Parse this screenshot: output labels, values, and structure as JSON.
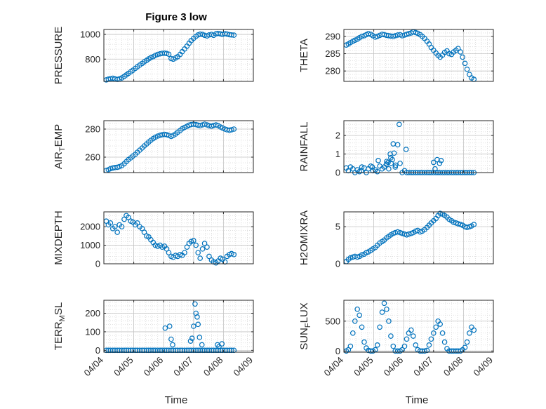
{
  "figure": {
    "title": "Figure 3 low",
    "xlabel": "Time"
  },
  "colors": {
    "marker": "#0072BD",
    "axis": "#262626",
    "grid": "#d9d9d9"
  },
  "chart_data": [
    {
      "type": "scatter",
      "ylabel": "PRESSURE",
      "ylim": [
        620,
        1040
      ],
      "yticks": [
        800,
        1000
      ],
      "x": [
        4.08,
        4.15,
        4.22,
        4.3,
        4.37,
        4.45,
        4.52,
        4.6,
        4.68,
        4.75,
        4.82,
        4.9,
        4.97,
        5.05,
        5.12,
        5.2,
        5.28,
        5.35,
        5.43,
        5.5,
        5.57,
        5.65,
        5.72,
        5.8,
        5.88,
        5.95,
        6.03,
        6.1,
        6.17,
        6.25,
        6.32,
        6.4,
        6.47,
        6.55,
        6.62,
        6.7,
        6.78,
        6.85,
        6.92,
        7.0,
        7.08,
        7.15,
        7.22,
        7.3,
        7.37,
        7.45,
        7.52,
        7.6,
        7.67,
        7.75,
        7.82,
        7.9,
        7.97,
        8.05,
        8.12,
        8.2,
        8.27,
        8.35
      ],
      "y": [
        632,
        638,
        642,
        645,
        640,
        636,
        640,
        648,
        660,
        672,
        685,
        698,
        710,
        725,
        738,
        752,
        765,
        778,
        790,
        802,
        812,
        820,
        830,
        838,
        843,
        847,
        848,
        846,
        840,
        805,
        800,
        810,
        820,
        838,
        860,
        882,
        905,
        928,
        950,
        968,
        984,
        996,
        1002,
        1000,
        993,
        988,
        996,
        1000,
        993,
        1005,
        1008,
        1004,
        1000,
        1006,
        1003,
        998,
        996,
        994
      ],
      "xlim": [
        4.0,
        9.0
      ],
      "xticks": [
        4,
        5,
        6,
        7,
        8,
        9
      ],
      "xticklabels": [
        "04/04",
        "04/05",
        "04/06",
        "04/07",
        "04/08",
        "04/09"
      ],
      "grid": true
    },
    {
      "type": "scatter",
      "ylabel": "THETA",
      "ylim": [
        277,
        292
      ],
      "yticks": [
        280,
        285,
        290
      ],
      "x": [
        4.08,
        4.15,
        4.22,
        4.3,
        4.37,
        4.45,
        4.52,
        4.6,
        4.68,
        4.75,
        4.82,
        4.9,
        4.97,
        5.05,
        5.12,
        5.2,
        5.28,
        5.35,
        5.43,
        5.5,
        5.57,
        5.65,
        5.72,
        5.8,
        5.88,
        5.95,
        6.03,
        6.1,
        6.17,
        6.25,
        6.32,
        6.4,
        6.47,
        6.55,
        6.62,
        6.7,
        6.78,
        6.85,
        6.92,
        7.0,
        7.08,
        7.15,
        7.22,
        7.3,
        7.37,
        7.45,
        7.52,
        7.6,
        7.67,
        7.75,
        7.82,
        7.9,
        7.97,
        8.05,
        8.12,
        8.2,
        8.27,
        8.35
      ],
      "y": [
        287.5,
        287.8,
        288.2,
        288.6,
        288.9,
        289.2,
        289.6,
        290.0,
        290.2,
        290.5,
        290.8,
        290.6,
        290.2,
        289.8,
        290.0,
        290.3,
        290.6,
        290.5,
        290.3,
        290.2,
        290.1,
        290.0,
        290.2,
        290.4,
        290.5,
        290.2,
        290.4,
        290.6,
        290.8,
        291.0,
        291.3,
        291.1,
        290.9,
        290.5,
        290.0,
        289.4,
        288.6,
        287.8,
        286.8,
        286.0,
        285.2,
        284.5,
        284.0,
        284.6,
        285.4,
        285.8,
        285.0,
        284.8,
        285.5,
        286.0,
        286.5,
        285.5,
        284.0,
        282.2,
        280.5,
        279.0,
        278.0,
        277.6
      ],
      "xlim": [
        4.0,
        9.0
      ],
      "xticks": [
        4,
        5,
        6,
        7,
        8,
        9
      ],
      "xticklabels": [
        "04/04",
        "04/05",
        "04/06",
        "04/07",
        "04/08",
        "04/09"
      ],
      "grid": true
    },
    {
      "type": "scatter",
      "ylabel": "AIR_TEMP",
      "ylim": [
        249,
        286
      ],
      "yticks": [
        260,
        280
      ],
      "x": [
        4.08,
        4.15,
        4.22,
        4.3,
        4.37,
        4.45,
        4.52,
        4.6,
        4.68,
        4.75,
        4.82,
        4.9,
        4.97,
        5.05,
        5.12,
        5.2,
        5.28,
        5.35,
        5.43,
        5.5,
        5.57,
        5.65,
        5.72,
        5.8,
        5.88,
        5.95,
        6.03,
        6.1,
        6.17,
        6.25,
        6.32,
        6.4,
        6.47,
        6.55,
        6.62,
        6.7,
        6.78,
        6.85,
        6.92,
        7.0,
        7.08,
        7.15,
        7.22,
        7.3,
        7.37,
        7.45,
        7.52,
        7.6,
        7.67,
        7.75,
        7.82,
        7.9,
        7.97,
        8.05,
        8.12,
        8.2,
        8.27,
        8.35
      ],
      "y": [
        250.5,
        251.0,
        251.8,
        252.3,
        252.6,
        252.8,
        253.2,
        254.0,
        255.3,
        256.8,
        258.2,
        259.5,
        260.8,
        262.0,
        263.5,
        265.0,
        266.5,
        268.0,
        269.4,
        270.8,
        272.0,
        273.2,
        274.2,
        275.0,
        275.6,
        276.0,
        276.2,
        276.0,
        275.5,
        274.8,
        275.5,
        276.5,
        277.8,
        279.0,
        280.2,
        281.2,
        282.0,
        282.8,
        283.2,
        283.5,
        283.2,
        282.8,
        282.5,
        283.0,
        283.5,
        283.0,
        282.4,
        282.0,
        282.6,
        283.0,
        282.5,
        281.5,
        280.8,
        280.0,
        279.5,
        279.2,
        279.5,
        280.0
      ],
      "xlim": [
        4.0,
        9.0
      ],
      "xticks": [
        4,
        5,
        6,
        7,
        8,
        9
      ],
      "xticklabels": [
        "04/04",
        "04/05",
        "04/06",
        "04/07",
        "04/08",
        "04/09"
      ],
      "grid": true
    },
    {
      "type": "scatter",
      "ylabel": "RAINFALL",
      "ylim": [
        0,
        2.8
      ],
      "yticks": [
        0,
        1,
        2
      ],
      "x": [
        4.08,
        4.15,
        4.22,
        4.3,
        4.37,
        4.45,
        4.52,
        4.6,
        4.68,
        4.75,
        4.82,
        4.9,
        4.97,
        5.05,
        5.12,
        5.2,
        5.28,
        5.35,
        5.43,
        5.5,
        5.57,
        5.65,
        5.72,
        5.8,
        5.88,
        5.95,
        6.03,
        6.1,
        6.17,
        6.25,
        6.32,
        6.4,
        6.47,
        6.55,
        6.62,
        6.7,
        6.78,
        6.85,
        6.92,
        7.0,
        7.08,
        7.15,
        7.22,
        7.3,
        7.37,
        7.45,
        7.52,
        7.6,
        7.67,
        7.75,
        7.82,
        7.9,
        7.97,
        8.05,
        8.12,
        8.2,
        8.27,
        8.35,
        4.58,
        4.95,
        5.15,
        5.42,
        5.48,
        5.55,
        5.58,
        5.62,
        5.68,
        5.73,
        5.85,
        6.08,
        7.0,
        7.05,
        7.12,
        7.2,
        7.25
      ],
      "y": [
        0.25,
        0.1,
        0.3,
        0.2,
        0,
        0.15,
        0.05,
        0.3,
        0.25,
        0,
        0.2,
        0.35,
        0.1,
        0.15,
        0.05,
        0.35,
        0.2,
        0.3,
        0.6,
        0.2,
        0.8,
        1.55,
        0.3,
        1.5,
        0.5,
        0,
        0.1,
        0,
        0,
        0,
        0,
        0,
        0,
        0,
        0,
        0,
        0,
        0,
        0,
        0,
        0,
        0,
        0,
        0,
        0,
        0,
        0,
        0,
        0,
        0,
        0,
        0,
        0,
        0,
        0,
        0,
        0,
        0,
        0.1,
        0.3,
        0.65,
        0.45,
        0.55,
        1.0,
        0.5,
        0.7,
        1.05,
        0.4,
        2.6,
        1.25,
        0.55,
        0.2,
        0.7,
        0.5,
        0.65
      ],
      "xlim": [
        4.0,
        9.0
      ],
      "xticks": [
        4,
        5,
        6,
        7,
        8,
        9
      ],
      "xticklabels": [
        "04/04",
        "04/05",
        "04/06",
        "04/07",
        "04/08",
        "04/09"
      ],
      "grid": true
    },
    {
      "type": "scatter",
      "ylabel": "MIXDEPTH",
      "ylim": [
        0,
        2800
      ],
      "yticks": [
        0,
        1000,
        2000
      ],
      "x": [
        4.08,
        4.15,
        4.22,
        4.3,
        4.37,
        4.45,
        4.52,
        4.6,
        4.68,
        4.75,
        4.82,
        4.9,
        4.97,
        5.05,
        5.12,
        5.2,
        5.28,
        5.35,
        5.43,
        5.5,
        5.57,
        5.65,
        5.72,
        5.8,
        5.88,
        5.95,
        6.03,
        6.1,
        6.17,
        6.25,
        6.32,
        6.4,
        6.47,
        6.55,
        6.62,
        6.7,
        6.78,
        6.85,
        6.92,
        7.0,
        7.08,
        7.15,
        7.22,
        7.3,
        7.37,
        7.45,
        7.52,
        7.6,
        7.67,
        7.75,
        7.82,
        7.9,
        7.97,
        8.05,
        8.12,
        8.2,
        8.27,
        8.35
      ],
      "y": [
        2300,
        2100,
        2200,
        1900,
        2000,
        1700,
        2100,
        2000,
        2400,
        2600,
        2500,
        2300,
        2250,
        2100,
        2200,
        2000,
        1900,
        1700,
        1500,
        1450,
        1300,
        1150,
        1000,
        950,
        1000,
        900,
        950,
        800,
        600,
        400,
        350,
        450,
        400,
        500,
        450,
        600,
        900,
        1100,
        1200,
        1250,
        1000,
        600,
        300,
        800,
        1100,
        900,
        400,
        200,
        100,
        50,
        150,
        300,
        250,
        100,
        400,
        500,
        550,
        500
      ],
      "xlim": [
        4.0,
        9.0
      ],
      "xticks": [
        4,
        5,
        6,
        7,
        8,
        9
      ],
      "xticklabels": [
        "04/04",
        "04/05",
        "04/06",
        "04/07",
        "04/08",
        "04/09"
      ],
      "grid": true
    },
    {
      "type": "scatter",
      "ylabel": "H2OMIXRA",
      "ylim": [
        0,
        7
      ],
      "yticks": [
        0,
        5
      ],
      "x": [
        4.08,
        4.15,
        4.22,
        4.3,
        4.37,
        4.45,
        4.52,
        4.6,
        4.68,
        4.75,
        4.82,
        4.9,
        4.97,
        5.05,
        5.12,
        5.2,
        5.28,
        5.35,
        5.43,
        5.5,
        5.57,
        5.65,
        5.72,
        5.8,
        5.88,
        5.95,
        6.03,
        6.1,
        6.17,
        6.25,
        6.32,
        6.4,
        6.47,
        6.55,
        6.62,
        6.7,
        6.78,
        6.85,
        6.92,
        7.0,
        7.08,
        7.15,
        7.22,
        7.3,
        7.37,
        7.45,
        7.52,
        7.6,
        7.67,
        7.75,
        7.82,
        7.9,
        7.97,
        8.05,
        8.12,
        8.2,
        8.27,
        8.35
      ],
      "y": [
        0.3,
        0.6,
        0.8,
        0.9,
        1.0,
        0.9,
        1.0,
        1.2,
        1.3,
        1.5,
        1.6,
        1.8,
        2.0,
        2.2,
        2.5,
        2.8,
        3.0,
        3.2,
        3.5,
        3.7,
        3.9,
        4.1,
        4.2,
        4.3,
        4.2,
        4.1,
        4.0,
        3.9,
        4.0,
        4.1,
        4.2,
        4.4,
        4.5,
        4.3,
        4.4,
        4.6,
        4.9,
        5.2,
        5.5,
        5.8,
        6.1,
        6.5,
        6.8,
        6.7,
        6.5,
        6.3,
        6.0,
        5.8,
        5.6,
        5.5,
        5.4,
        5.3,
        5.2,
        5.0,
        4.9,
        5.0,
        5.1,
        5.3
      ],
      "xlim": [
        4.0,
        9.0
      ],
      "xticks": [
        4,
        5,
        6,
        7,
        8,
        9
      ],
      "xticklabels": [
        "04/04",
        "04/05",
        "04/06",
        "04/07",
        "04/08",
        "04/09"
      ],
      "grid": true
    },
    {
      "type": "scatter",
      "ylabel": "TERR_MSL",
      "ylim": [
        -10,
        270
      ],
      "yticks": [
        0,
        100,
        200
      ],
      "x": [
        4.08,
        4.15,
        4.22,
        4.3,
        4.37,
        4.45,
        4.52,
        4.6,
        4.68,
        4.75,
        4.82,
        4.9,
        4.97,
        5.05,
        5.12,
        5.2,
        5.28,
        5.35,
        5.43,
        5.5,
        5.57,
        5.65,
        5.72,
        5.8,
        5.88,
        5.95,
        6.03,
        6.1,
        6.17,
        6.25,
        6.32,
        6.4,
        6.47,
        6.55,
        6.62,
        6.7,
        6.78,
        6.85,
        6.92,
        7.0,
        7.08,
        7.15,
        7.22,
        7.3,
        7.37,
        7.45,
        7.52,
        7.6,
        7.67,
        7.75,
        7.82,
        7.9,
        7.97,
        8.05,
        8.12,
        8.2,
        8.27,
        8.35,
        6.05,
        6.2,
        6.25,
        6.3,
        6.9,
        6.95,
        7.0,
        7.05,
        7.08,
        7.12,
        7.15,
        7.2,
        7.28,
        7.8,
        7.85,
        7.95
      ],
      "y": [
        0,
        0,
        0,
        0,
        0,
        0,
        0,
        0,
        0,
        0,
        0,
        0,
        0,
        0,
        0,
        0,
        0,
        0,
        0,
        0,
        0,
        0,
        0,
        0,
        0,
        0,
        0,
        0,
        0,
        0,
        0,
        0,
        0,
        0,
        0,
        0,
        0,
        0,
        0,
        0,
        0,
        0,
        0,
        0,
        0,
        0,
        0,
        0,
        0,
        0,
        0,
        0,
        0,
        0,
        0,
        0,
        0,
        0,
        120,
        130,
        60,
        30,
        50,
        65,
        130,
        250,
        200,
        180,
        140,
        70,
        30,
        30,
        20,
        35
      ],
      "xlim": [
        4.0,
        9.0
      ],
      "xticks": [
        4,
        5,
        6,
        7,
        8,
        9
      ],
      "xticklabels": [
        "04/04",
        "04/05",
        "04/06",
        "04/07",
        "04/08",
        "04/09"
      ],
      "grid": true
    },
    {
      "type": "scatter",
      "ylabel": "SUN_FLUX",
      "ylim": [
        -20,
        850
      ],
      "yticks": [
        0,
        500
      ],
      "x": [
        4.08,
        4.15,
        4.22,
        4.3,
        4.37,
        4.45,
        4.52,
        4.6,
        4.68,
        4.75,
        4.82,
        4.9,
        4.97,
        5.05,
        5.12,
        5.2,
        5.28,
        5.35,
        5.43,
        5.5,
        5.57,
        5.65,
        5.72,
        5.8,
        5.88,
        5.95,
        6.03,
        6.1,
        6.17,
        6.25,
        6.32,
        6.4,
        6.47,
        6.55,
        6.62,
        6.7,
        6.78,
        6.85,
        6.92,
        7.0,
        7.08,
        7.15,
        7.22,
        7.3,
        7.37,
        7.45,
        7.52,
        7.6,
        7.67,
        7.75,
        7.82,
        7.9,
        7.97,
        8.05,
        8.12,
        8.2,
        8.27,
        8.35
      ],
      "y": [
        0,
        20,
        80,
        300,
        500,
        700,
        600,
        400,
        150,
        50,
        10,
        0,
        0,
        20,
        100,
        400,
        650,
        800,
        700,
        500,
        250,
        80,
        0,
        0,
        0,
        20,
        80,
        200,
        300,
        350,
        250,
        100,
        20,
        0,
        0,
        0,
        10,
        100,
        200,
        300,
        400,
        500,
        450,
        300,
        150,
        40,
        0,
        0,
        0,
        0,
        0,
        0,
        20,
        60,
        150,
        300,
        400,
        350
      ],
      "xlim": [
        4.0,
        9.0
      ],
      "xticks": [
        4,
        5,
        6,
        7,
        8,
        9
      ],
      "xticklabels": [
        "04/04",
        "04/05",
        "04/06",
        "04/07",
        "04/08",
        "04/09"
      ],
      "grid": true
    }
  ]
}
